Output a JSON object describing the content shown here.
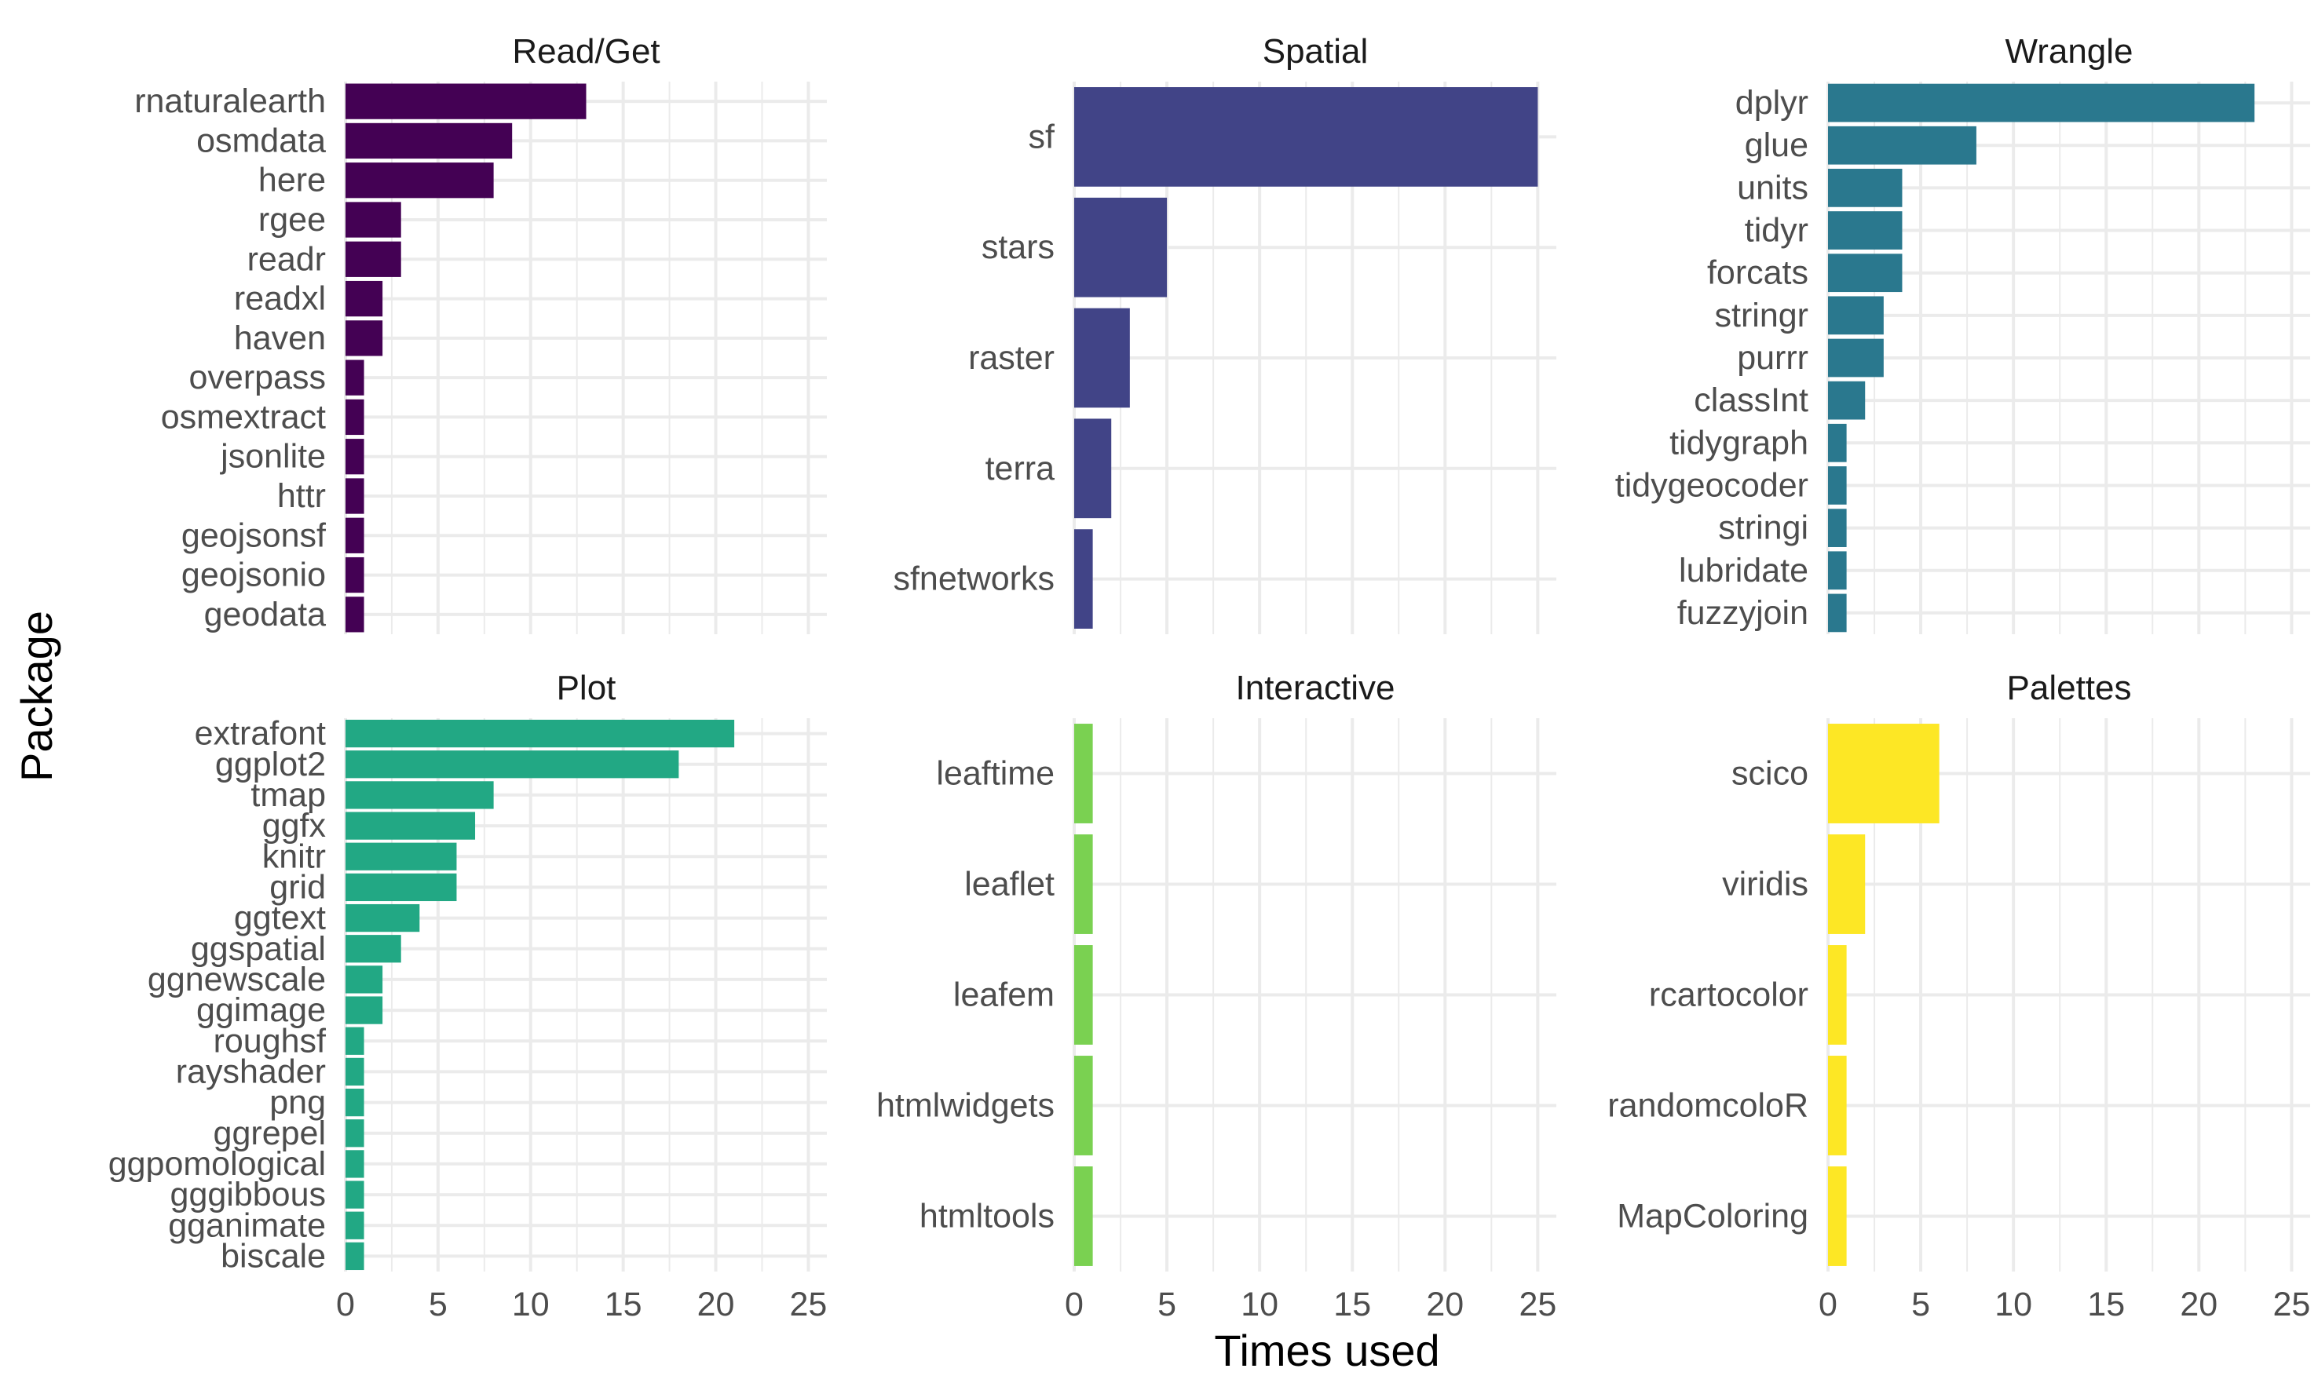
{
  "chart_data": {
    "type": "bar",
    "orientation": "horizontal",
    "xlabel": "Times used",
    "ylabel": "Package",
    "xlim": [
      0,
      26
    ],
    "xticks": [
      0,
      5,
      10,
      15,
      20,
      25
    ],
    "grid": true,
    "legend": "none",
    "facets": [
      {
        "title": "Read/Get",
        "color": "#440154",
        "categories": [
          "rnaturalearth",
          "osmdata",
          "here",
          "rgee",
          "readr",
          "readxl",
          "haven",
          "overpass",
          "osmextract",
          "jsonlite",
          "httr",
          "geojsonsf",
          "geojsonio",
          "geodata"
        ],
        "values": [
          13,
          9,
          8,
          3,
          3,
          2,
          2,
          1,
          1,
          1,
          1,
          1,
          1,
          1
        ]
      },
      {
        "title": "Spatial",
        "color": "#414487",
        "categories": [
          "sf",
          "stars",
          "raster",
          "terra",
          "sfnetworks"
        ],
        "values": [
          25,
          5,
          3,
          2,
          1
        ]
      },
      {
        "title": "Wrangle",
        "color": "#2A788E",
        "categories": [
          "dplyr",
          "glue",
          "units",
          "tidyr",
          "forcats",
          "stringr",
          "purrr",
          "classInt",
          "tidygraph",
          "tidygeocoder",
          "stringi",
          "lubridate",
          "fuzzyjoin"
        ],
        "values": [
          23,
          8,
          4,
          4,
          4,
          3,
          3,
          2,
          1,
          1,
          1,
          1,
          1
        ]
      },
      {
        "title": "Plot",
        "color": "#22A884",
        "categories": [
          "extrafont",
          "ggplot2",
          "tmap",
          "ggfx",
          "knitr",
          "grid",
          "ggtext",
          "ggspatial",
          "ggnewscale",
          "ggimage",
          "roughsf",
          "rayshader",
          "png",
          "ggrepel",
          "ggpomological",
          "gggibbous",
          "gganimate",
          "biscale"
        ],
        "values": [
          21,
          18,
          8,
          7,
          6,
          6,
          4,
          3,
          2,
          2,
          1,
          1,
          1,
          1,
          1,
          1,
          1,
          1
        ]
      },
      {
        "title": "Interactive",
        "color": "#7AD151",
        "categories": [
          "leaftime",
          "leaflet",
          "leafem",
          "htmlwidgets",
          "htmltools"
        ],
        "values": [
          1,
          1,
          1,
          1,
          1
        ]
      },
      {
        "title": "Palettes",
        "color": "#FDE725",
        "categories": [
          "scico",
          "viridis",
          "rcartocolor",
          "randomcoloR",
          "MapColoring"
        ],
        "values": [
          6,
          2,
          1,
          1,
          1
        ]
      }
    ]
  }
}
